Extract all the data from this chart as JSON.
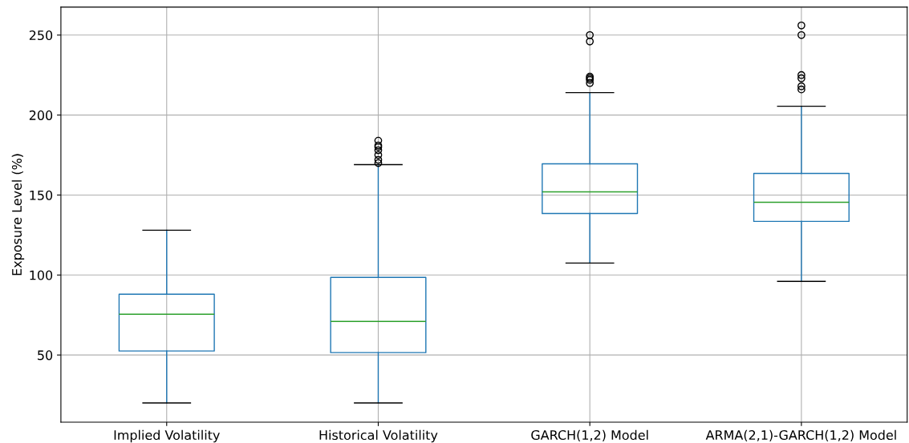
{
  "chart_data": {
    "type": "box",
    "ylabel": "Exposure Level (%)",
    "categories": [
      "Implied Volatility",
      "Historical Volatility",
      "GARCH(1,2) Model",
      "ARMA(2,1)-GARCH(1,2) Model"
    ],
    "boxes": [
      {
        "low": 20,
        "q1": 52.5,
        "median": 75.5,
        "q3": 88,
        "high": 128
      },
      {
        "low": 20,
        "q1": 51.5,
        "median": 71,
        "q3": 98.5,
        "high": 169,
        "outliers": [
          170,
          172,
          175,
          178,
          180,
          181,
          184
        ]
      },
      {
        "low": 107.5,
        "q1": 138.5,
        "median": 152,
        "q3": 169.5,
        "high": 214,
        "outliers": [
          220,
          222,
          223,
          224,
          246,
          250
        ]
      },
      {
        "low": 96,
        "q1": 133.5,
        "median": 145.5,
        "q3": 163.5,
        "high": 205.5,
        "outliers": [
          216,
          218,
          223,
          225,
          250,
          256
        ]
      }
    ],
    "color": "#1f77b4",
    "ylim": [
      8,
      267.5
    ],
    "yticks": [
      50,
      100,
      150,
      200,
      250
    ],
    "grid": true
  }
}
